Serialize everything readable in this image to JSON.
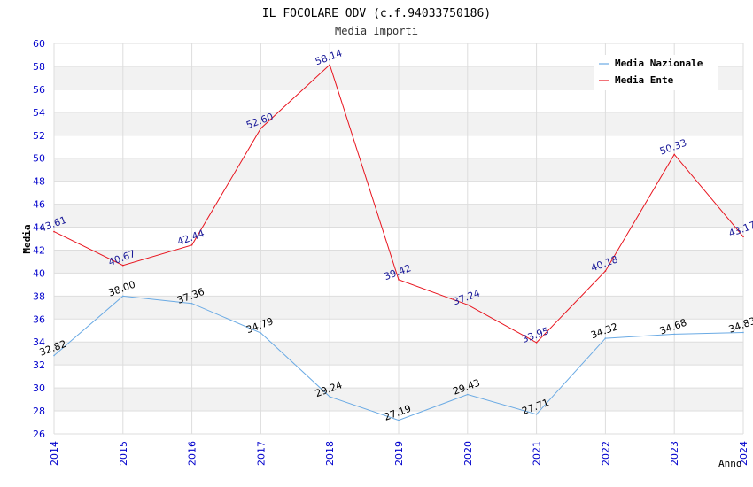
{
  "chart_data": {
    "type": "line",
    "title": "IL FOCOLARE ODV (c.f.94033750186)",
    "subtitle": "Media Importi",
    "xlabel": "Anno",
    "ylabel": "Media",
    "x": [
      "2014",
      "2015",
      "2016",
      "2017",
      "2018",
      "2019",
      "2020",
      "2021",
      "2022",
      "2023",
      "2024"
    ],
    "ylim": [
      26,
      60
    ],
    "yticks": [
      "26",
      "28",
      "30",
      "32",
      "34",
      "36",
      "38",
      "40",
      "42",
      "44",
      "46",
      "48",
      "50",
      "52",
      "54",
      "56",
      "58",
      "60"
    ],
    "grid": true,
    "legend_position": "top-right",
    "series": [
      {
        "name": "Media Nazionale",
        "color": "#6aaae4",
        "label_color": "#000000",
        "values": [
          32.82,
          38.0,
          37.36,
          34.79,
          29.24,
          27.19,
          29.43,
          27.71,
          34.32,
          34.68,
          34.83
        ],
        "labels": [
          "32.82",
          "38.00",
          "37.36",
          "34.79",
          "29.24",
          "27.19",
          "29.43",
          "27.71",
          "34.32",
          "34.68",
          "34.83"
        ]
      },
      {
        "name": "Media Ente",
        "color": "#e8141e",
        "label_color": "#1a1a99",
        "values": [
          43.61,
          40.67,
          42.44,
          52.6,
          58.14,
          39.42,
          37.24,
          33.95,
          40.18,
          50.33,
          43.17
        ],
        "labels": [
          "43.61",
          "40.67",
          "42.44",
          "52.60",
          "58.14",
          "39.42",
          "37.24",
          "33.95",
          "40.18",
          "50.33",
          "43.17"
        ]
      }
    ],
    "colors": {
      "axis_tick_text": "#0000cc",
      "band": "#f2f2f2",
      "gridline": "#dddddd"
    }
  }
}
